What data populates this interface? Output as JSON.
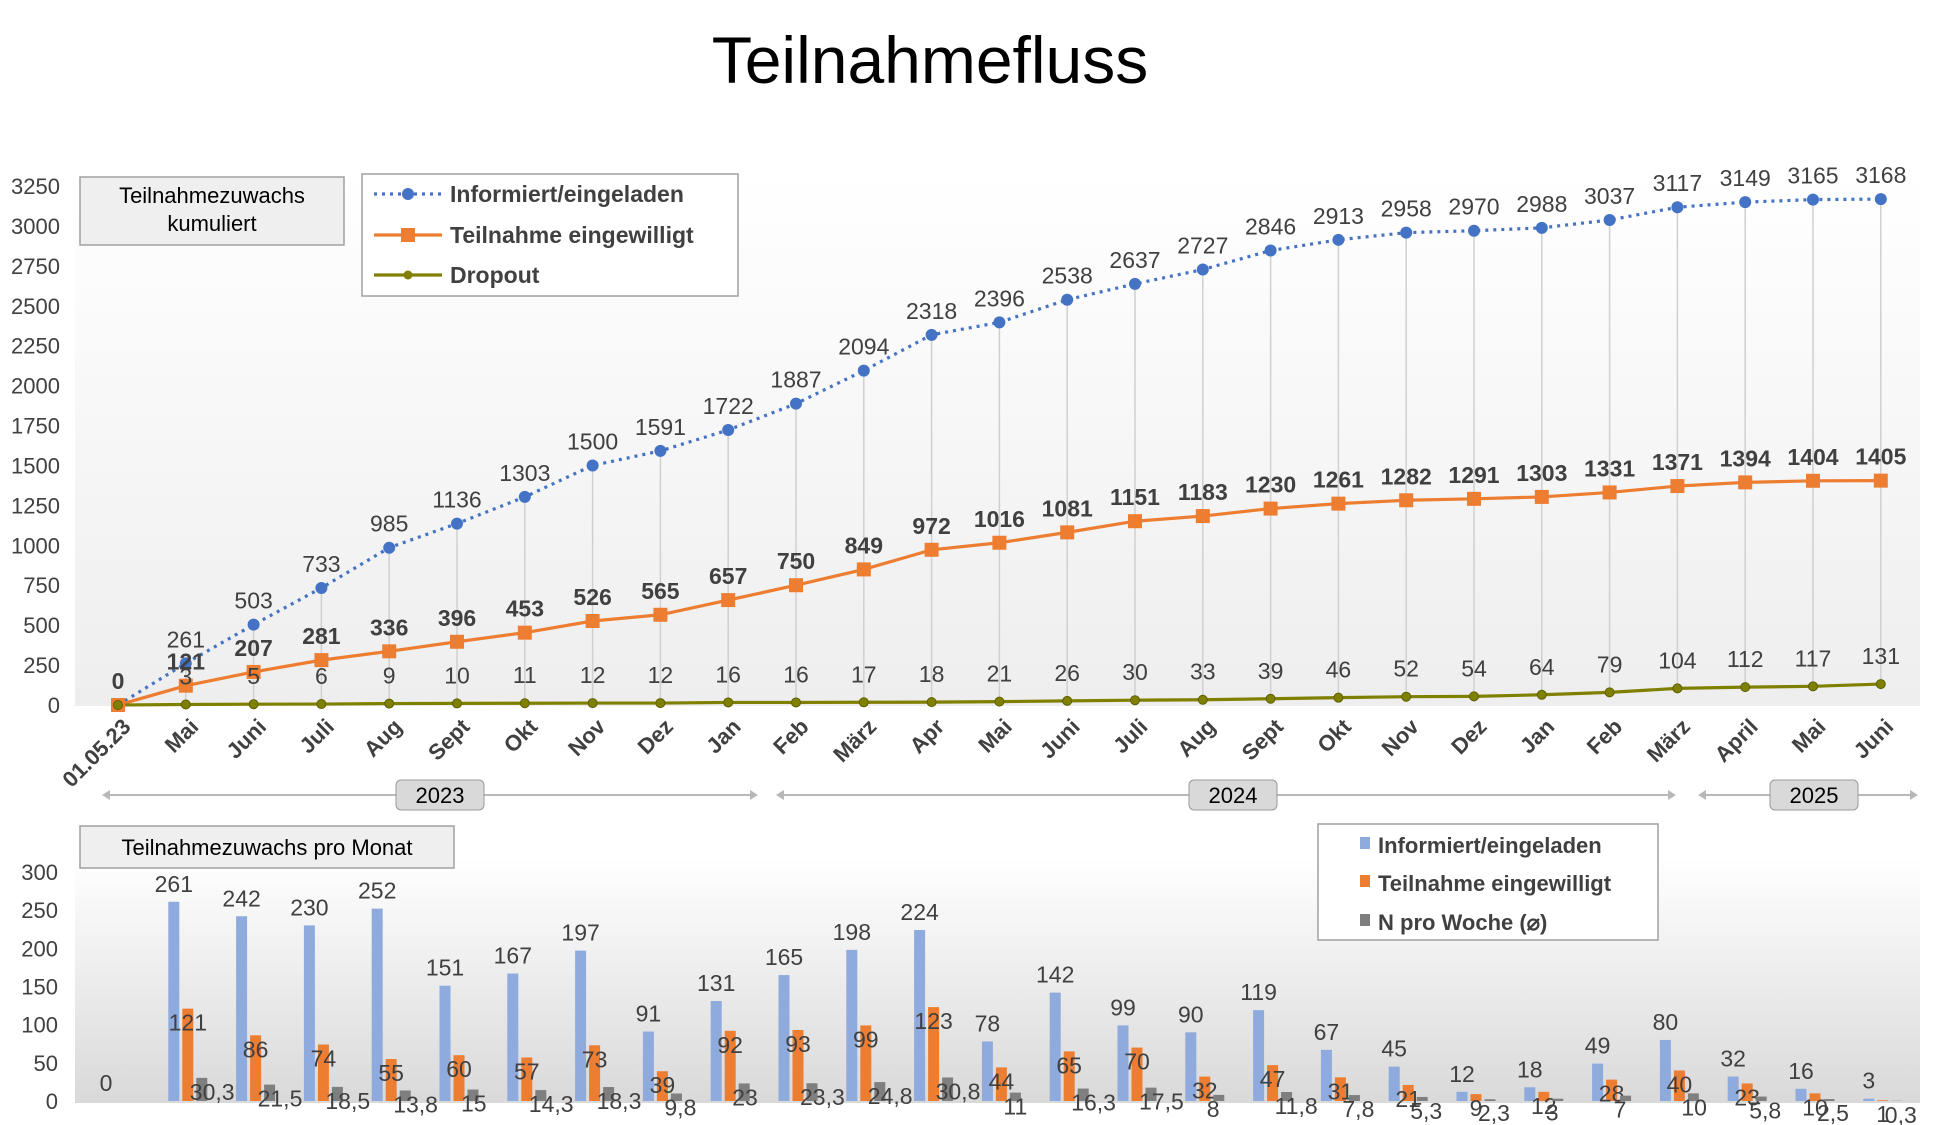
{
  "title": "Teilnahmefluss",
  "chart_data": [
    {
      "type": "line",
      "label": "Teilnahmezuwachs kumuliert",
      "categories": [
        "01.05.23",
        "Mai",
        "Juni",
        "Juli",
        "Aug",
        "Sept",
        "Okt",
        "Nov",
        "Dez",
        "Jan",
        "Feb",
        "März",
        "Apr",
        "Mai",
        "Juni",
        "Juli",
        "Aug",
        "Sept",
        "Okt",
        "Nov",
        "Dez",
        "Jan",
        "Feb",
        "März",
        "April",
        "Mai",
        "Juni"
      ],
      "ylim": [
        0,
        3250
      ],
      "yticks": [
        0,
        250,
        500,
        750,
        1000,
        1250,
        1500,
        1750,
        2000,
        2250,
        2500,
        2750,
        3000,
        3250
      ],
      "year_labels": [
        "2023",
        "2024",
        "2025"
      ],
      "series": [
        {
          "name": "Informiert/eingeladen",
          "color": "#4472C4",
          "values": [
            0,
            261,
            503,
            733,
            985,
            1136,
            1303,
            1500,
            1591,
            1722,
            1887,
            2094,
            2318,
            2396,
            2538,
            2637,
            2727,
            2846,
            2913,
            2958,
            2970,
            2988,
            3037,
            3117,
            3149,
            3165,
            3168
          ]
        },
        {
          "name": "Teilnahme eingewilligt",
          "color": "#ED7D31",
          "values": [
            0,
            121,
            207,
            281,
            336,
            396,
            453,
            526,
            565,
            657,
            750,
            849,
            972,
            1016,
            1081,
            1151,
            1183,
            1230,
            1261,
            1282,
            1291,
            1303,
            1331,
            1371,
            1394,
            1404,
            1405
          ]
        },
        {
          "name": "Dropout",
          "color": "#808000",
          "values": [
            0,
            3,
            5,
            6,
            9,
            10,
            11,
            12,
            12,
            16,
            16,
            17,
            18,
            21,
            26,
            30,
            33,
            39,
            46,
            52,
            54,
            64,
            79,
            104,
            112,
            117,
            131
          ]
        }
      ]
    },
    {
      "type": "bar",
      "label": "Teilnahmezuwachs pro Monat",
      "ylim": [
        0,
        300
      ],
      "yticks": [
        0,
        50,
        100,
        150,
        200,
        250,
        300
      ],
      "categories": [
        "01.05.23",
        "Mai",
        "Juni",
        "Juli",
        "Aug",
        "Sept",
        "Okt",
        "Nov",
        "Dez",
        "Jan",
        "Feb",
        "März",
        "Apr",
        "Mai",
        "Juni",
        "Juli",
        "Aug",
        "Sept",
        "Okt",
        "Nov",
        "Dez",
        "Jan",
        "Feb",
        "März",
        "April",
        "Mai",
        "Juni"
      ],
      "series": [
        {
          "name": "Informiert/eingeladen",
          "color": "#8FAADC",
          "values": [
            0,
            261,
            242,
            230,
            252,
            151,
            167,
            197,
            91,
            131,
            165,
            198,
            224,
            78,
            142,
            99,
            90,
            119,
            67,
            45,
            12,
            18,
            49,
            80,
            32,
            16,
            3
          ],
          "labels": [
            "0",
            "261",
            "242",
            "230",
            "252",
            "151",
            "167",
            "197",
            "91",
            "131",
            "165",
            "198",
            "224",
            "78",
            "142",
            "99",
            "90",
            "119",
            "67",
            "45",
            "12",
            "18",
            "49",
            "80",
            "32",
            "16",
            "3"
          ]
        },
        {
          "name": "Teilnahme eingewilligt",
          "color": "#ED7D31",
          "values": [
            0,
            121,
            86,
            74,
            55,
            60,
            57,
            73,
            39,
            92,
            93,
            99,
            123,
            44,
            65,
            70,
            32,
            47,
            31,
            21,
            9,
            12,
            28,
            40,
            23,
            10,
            1
          ],
          "labels": [
            "",
            "121",
            "86",
            "74",
            "55",
            "60",
            "57",
            "73",
            "39",
            "92",
            "93",
            "99",
            "123",
            "44",
            "65",
            "70",
            "32",
            "47",
            "31",
            "21",
            "9",
            "12",
            "28",
            "40",
            "23",
            "10",
            "1"
          ]
        },
        {
          "name": "N pro Woche (ø)",
          "legend": "N pro Woche (⌀)",
          "color": "#7F7F7F",
          "values": [
            0,
            30.3,
            21.5,
            18.5,
            13.8,
            15,
            14.3,
            18.3,
            9.8,
            23,
            23.3,
            24.8,
            30.8,
            11,
            16.3,
            17.5,
            8,
            11.8,
            7.8,
            5.3,
            2.3,
            3,
            7,
            10,
            5.8,
            2.5,
            0.3
          ],
          "labels": [
            "",
            "30,3",
            "21,5",
            "18,5",
            "13,8",
            "15",
            "14,3",
            "18,3",
            "9,8",
            "23",
            "23,3",
            "24,8",
            "30,8",
            "11",
            "16,3",
            "17,5",
            "8",
            "11,8",
            "7,8",
            "5,3",
            "2,3",
            "3",
            "7",
            "10",
            "5,8",
            "2,5",
            "0,3"
          ]
        }
      ]
    }
  ]
}
